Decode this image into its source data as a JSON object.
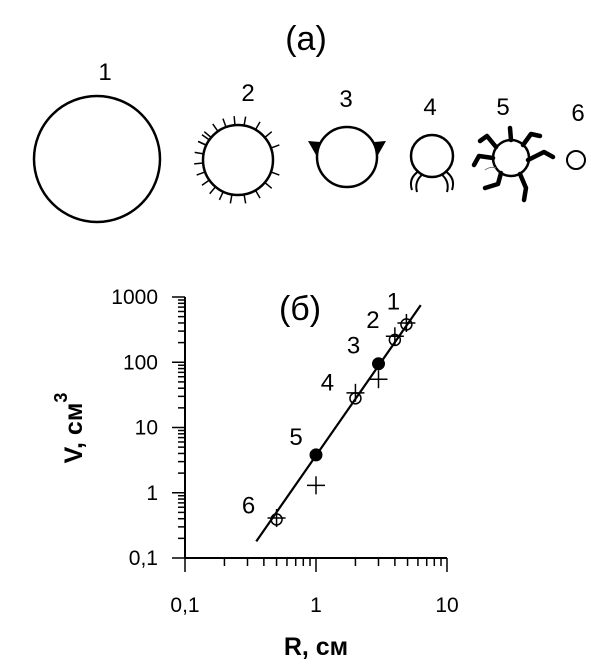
{
  "panel_a": {
    "label": "(a)",
    "shapes": [
      {
        "number": "1",
        "icon": "large-plain-circle"
      },
      {
        "number": "2",
        "icon": "circle-with-short-cilia"
      },
      {
        "number": "3",
        "icon": "circle-with-two-triangular-points"
      },
      {
        "number": "4",
        "icon": "circle-with-two-curved-legs"
      },
      {
        "number": "5",
        "icon": "circle-with-six-bent-arms"
      },
      {
        "number": "6",
        "icon": "small-plain-circle"
      }
    ]
  },
  "chart_data": {
    "type": "scatter",
    "panel_label": "(б)",
    "xlabel": "R, см",
    "ylabel": "V, см",
    "ylabel_superscript": "3",
    "x_scale": "log",
    "y_scale": "log",
    "xlim": [
      0.1,
      10
    ],
    "ylim": [
      0.1,
      1000
    ],
    "x_ticks": [
      {
        "value": 0.1,
        "label": "0,1"
      },
      {
        "value": 1,
        "label": "1"
      },
      {
        "value": 10,
        "label": "10"
      }
    ],
    "y_ticks": [
      {
        "value": 0.1,
        "label": "0,1"
      },
      {
        "value": 1,
        "label": "1"
      },
      {
        "value": 10,
        "label": "10"
      },
      {
        "value": 100,
        "label": "100"
      },
      {
        "value": 1000,
        "label": "1000"
      }
    ],
    "grid": false,
    "legend": "none",
    "open_circles": [
      {
        "label": "6",
        "x": 0.5,
        "y": 0.39
      },
      {
        "label": "4",
        "x": 2,
        "y": 28
      },
      {
        "label": "2",
        "x": 4,
        "y": 220
      },
      {
        "label": "1",
        "x": 4.9,
        "y": 380
      }
    ],
    "filled_circles": [
      {
        "label": "5",
        "x": 1,
        "y": 3.8
      },
      {
        "label": "3",
        "x": 3,
        "y": 95
      }
    ],
    "plus_markers": [
      {
        "x": 0.5,
        "y": 0.41
      },
      {
        "x": 1,
        "y": 1.3
      },
      {
        "x": 2,
        "y": 34
      },
      {
        "x": 3,
        "y": 55
      },
      {
        "x": 4,
        "y": 250
      },
      {
        "x": 4.9,
        "y": 400
      }
    ],
    "fit_line": [
      {
        "x": 0.35,
        "y": 0.18
      },
      {
        "x": 6.3,
        "y": 750
      }
    ]
  },
  "colors": {
    "ink": "#000000",
    "background": "#ffffff"
  }
}
